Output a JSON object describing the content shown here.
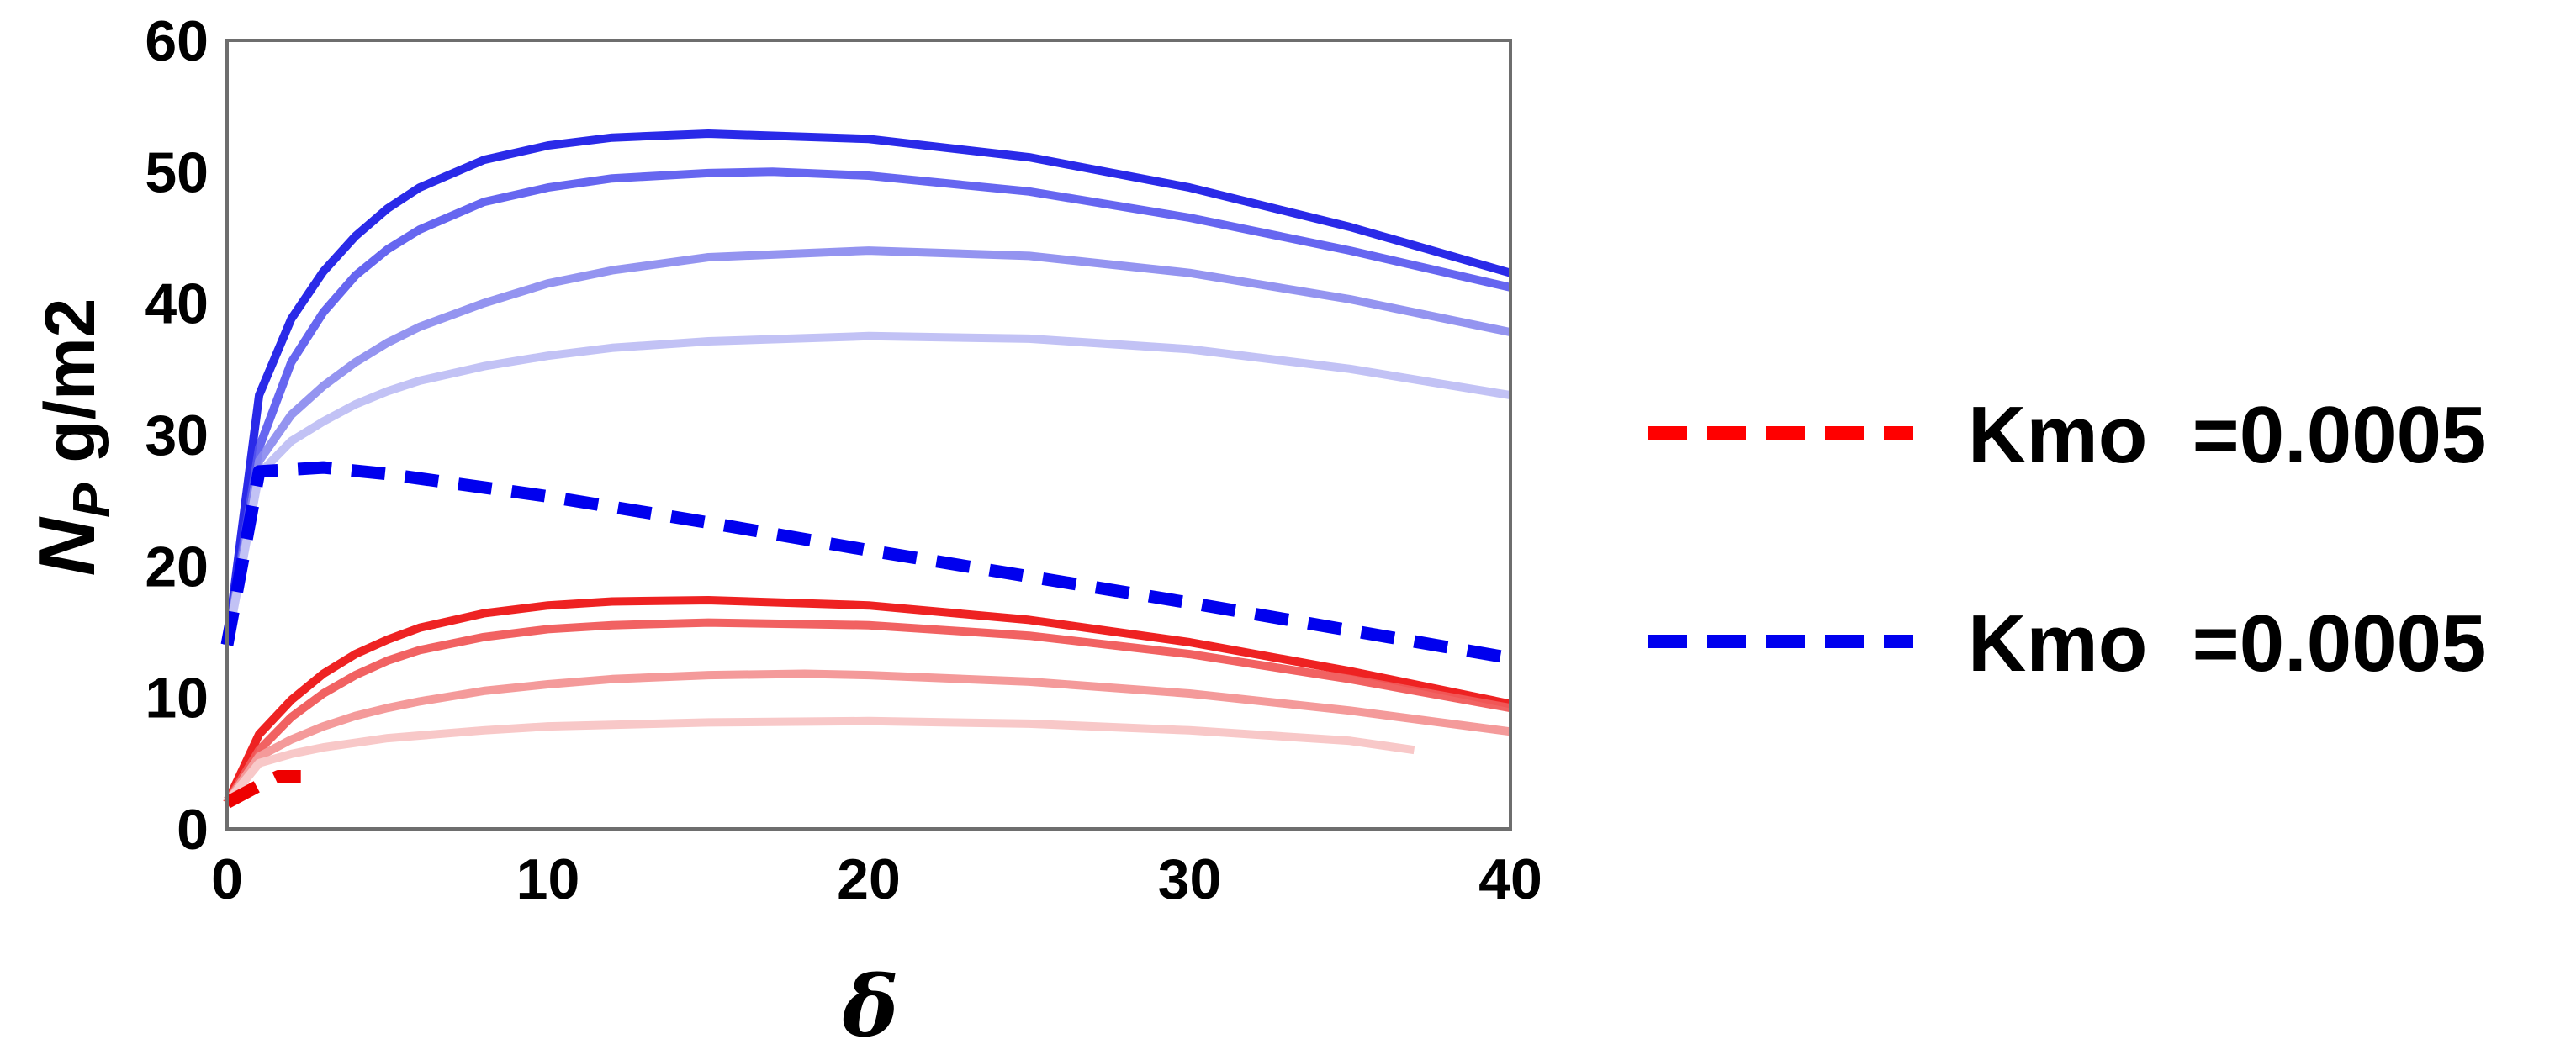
{
  "chart_data": {
    "type": "line",
    "xlabel": "δ",
    "ylabel_symbol": "N",
    "ylabel_subscript": "P",
    "ylabel_unit": "g/m2",
    "xlim": [
      0,
      40
    ],
    "ylim": [
      0,
      60
    ],
    "xticks": [
      0,
      10,
      20,
      30,
      40
    ],
    "yticks": [
      0,
      10,
      20,
      30,
      40,
      50,
      60
    ],
    "grid": false,
    "legend_position": "right",
    "legend": [
      {
        "label": "Kmo  =0.0005",
        "color": "#ff0000",
        "dashed": true
      },
      {
        "label": "Kmo  =0.0005",
        "color": "#0000ee",
        "dashed": true
      }
    ],
    "series": [
      {
        "color": "#2a2ae8",
        "opacity": 1.0,
        "dashed": false,
        "x": [
          0,
          1,
          2,
          3,
          4,
          5,
          6,
          8,
          10,
          12,
          15,
          20,
          25,
          30,
          35,
          40
        ],
        "y": [
          14,
          33,
          38.8,
          42.4,
          45.1,
          47.2,
          48.8,
          50.9,
          52.0,
          52.6,
          52.9,
          52.5,
          51.1,
          48.8,
          45.8,
          42.3
        ]
      },
      {
        "color": "#5555ee",
        "opacity": 0.9,
        "dashed": false,
        "x": [
          0,
          1,
          2,
          3,
          4,
          5,
          6,
          8,
          10,
          12,
          15,
          17,
          20,
          25,
          30,
          35,
          40
        ],
        "y": [
          14,
          29,
          35.5,
          39.3,
          42.1,
          44.1,
          45.6,
          47.7,
          48.8,
          49.5,
          49.9,
          50.0,
          49.7,
          48.5,
          46.5,
          44.0,
          41.2
        ]
      },
      {
        "color": "#8888ee",
        "opacity": 0.9,
        "dashed": false,
        "x": [
          0,
          1,
          2,
          3,
          4,
          5,
          6,
          8,
          10,
          12,
          15,
          20,
          25,
          30,
          35,
          40
        ],
        "y": [
          14,
          28,
          31.5,
          33.7,
          35.5,
          37.0,
          38.2,
          40.0,
          41.5,
          42.5,
          43.5,
          44.0,
          43.6,
          42.3,
          40.3,
          37.8
        ]
      },
      {
        "color": "#c2c2f5",
        "opacity": 1.0,
        "dashed": false,
        "x": [
          0,
          1,
          2,
          3,
          4,
          5,
          6,
          8,
          10,
          12,
          15,
          20,
          25,
          30,
          35,
          40
        ],
        "y": [
          14,
          27,
          29.5,
          31.0,
          32.3,
          33.3,
          34.1,
          35.2,
          36.0,
          36.6,
          37.1,
          37.5,
          37.3,
          36.5,
          35.0,
          33.0
        ]
      },
      {
        "color": "#0000ee",
        "opacity": 1.0,
        "dashed": true,
        "x": [
          0,
          1,
          3,
          5,
          10,
          15,
          20,
          25,
          30,
          35,
          40
        ],
        "y": [
          14,
          27.2,
          27.5,
          27.0,
          25.3,
          23.3,
          21.2,
          19.2,
          17.2,
          15.1,
          13.0
        ]
      },
      {
        "color": "#ee2222",
        "opacity": 1.0,
        "dashed": false,
        "x": [
          0,
          1,
          2,
          3,
          4,
          5,
          6,
          8,
          10,
          12,
          15,
          20,
          25,
          30,
          35,
          40
        ],
        "y": [
          2,
          7.2,
          9.8,
          11.8,
          13.3,
          14.4,
          15.3,
          16.4,
          17.0,
          17.3,
          17.4,
          17.0,
          15.9,
          14.2,
          12.0,
          9.5
        ]
      },
      {
        "color": "#f05a5a",
        "opacity": 0.95,
        "dashed": false,
        "x": [
          0,
          1,
          2,
          3,
          4,
          5,
          6,
          8,
          10,
          12,
          15,
          20,
          25,
          30,
          35,
          40
        ],
        "y": [
          2,
          6.0,
          8.5,
          10.3,
          11.7,
          12.8,
          13.6,
          14.6,
          15.2,
          15.5,
          15.7,
          15.5,
          14.7,
          13.3,
          11.4,
          9.2
        ]
      },
      {
        "color": "#f49a9a",
        "opacity": 1.0,
        "dashed": false,
        "x": [
          0,
          1,
          2,
          3,
          4,
          5,
          6,
          8,
          10,
          12,
          15,
          18,
          20,
          25,
          30,
          35,
          40
        ],
        "y": [
          2,
          5.5,
          6.8,
          7.8,
          8.6,
          9.2,
          9.7,
          10.5,
          11.0,
          11.4,
          11.7,
          11.8,
          11.7,
          11.2,
          10.3,
          9.0,
          7.4
        ]
      },
      {
        "color": "#f8c8c8",
        "opacity": 1.0,
        "dashed": false,
        "x": [
          0,
          1,
          2,
          3,
          5,
          8,
          10,
          15,
          20,
          25,
          30,
          35,
          37
        ],
        "y": [
          2,
          5.0,
          5.7,
          6.2,
          6.9,
          7.5,
          7.8,
          8.1,
          8.2,
          8.0,
          7.5,
          6.7,
          6.0
        ]
      },
      {
        "color": "#ee0000",
        "opacity": 1.0,
        "dashed": true,
        "x": [
          0,
          1.0,
          1.6,
          2.3
        ],
        "y": [
          2,
          3.3,
          4.0,
          4.0
        ]
      }
    ]
  }
}
